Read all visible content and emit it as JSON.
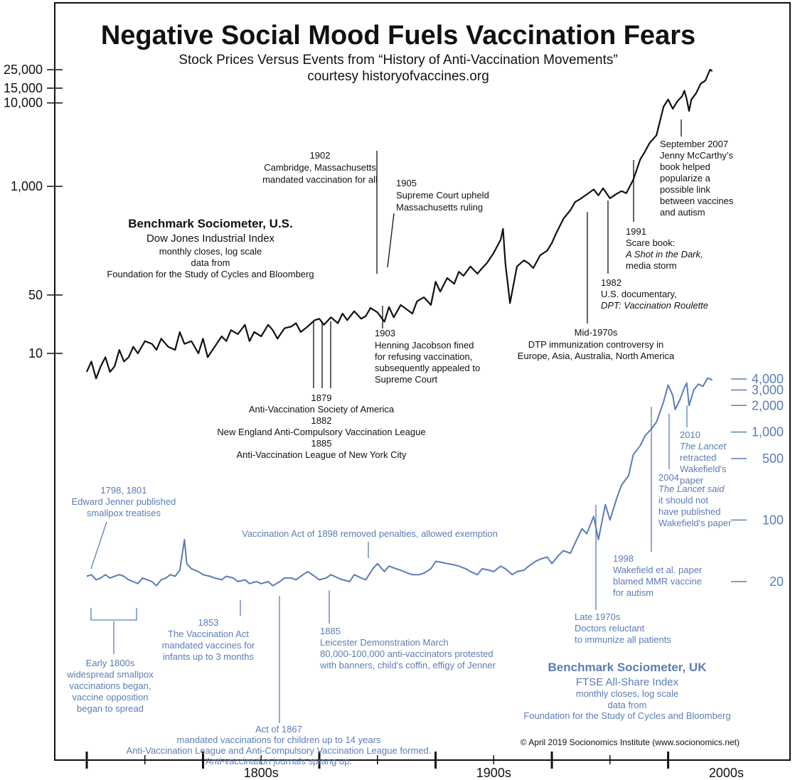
{
  "title": "Negative Social Mood Fuels Vaccination Fears",
  "subtitle": "Stock Prices Versus Events from “History of Anti-Vaccination Movements”",
  "courtesy": "courtesy historyofvaccines.org",
  "copyright": "© April 2019 Socionomics Institute (www.socionomics.net)",
  "colors": {
    "us": "#111111",
    "uk": "#5b7db3"
  },
  "chart_data": [
    {
      "type": "line",
      "name": "Benchmark Sociometer, U.S.",
      "legend": [
        "Benchmark Sociometer, U.S.",
        "Dow Jones Industrial Index",
        "monthly closes, log scale",
        "data from",
        "Foundation for the Study of Cycles and Bloomberg"
      ],
      "scale": "log",
      "axis_side": "left",
      "yticks": [
        {
          "value": 25000,
          "label": "25,000"
        },
        {
          "value": 15000,
          "label": "15,000"
        },
        {
          "value": 10000,
          "label": "10,000"
        },
        {
          "value": 1000,
          "label": "1,000"
        },
        {
          "value": 50,
          "label": "50"
        },
        {
          "value": 10,
          "label": "10"
        }
      ],
      "x": [
        1750,
        1752,
        1754,
        1756,
        1758,
        1760,
        1762,
        1764,
        1766,
        1768,
        1770,
        1772,
        1775,
        1778,
        1780,
        1782,
        1785,
        1788,
        1790,
        1792,
        1795,
        1798,
        1800,
        1802,
        1805,
        1808,
        1810,
        1812,
        1815,
        1818,
        1820,
        1822,
        1825,
        1828,
        1830,
        1832,
        1835,
        1838,
        1840,
        1842,
        1845,
        1848,
        1850,
        1852,
        1855,
        1858,
        1860,
        1862,
        1865,
        1868,
        1870,
        1872,
        1875,
        1878,
        1880,
        1882,
        1885,
        1888,
        1890,
        1892,
        1895,
        1898,
        1900,
        1902,
        1905,
        1908,
        1910,
        1912,
        1915,
        1918,
        1920,
        1922,
        1925,
        1928,
        1929,
        1930,
        1932,
        1935,
        1938,
        1940,
        1942,
        1945,
        1948,
        1950,
        1952,
        1955,
        1958,
        1960,
        1962,
        1965,
        1968,
        1970,
        1972,
        1975,
        1978,
        1980,
        1982,
        1985,
        1988,
        1990,
        1992,
        1995,
        1998,
        2000,
        2002,
        2004,
        2006,
        2007,
        2008,
        2009,
        2010,
        2012,
        2014,
        2016,
        2018,
        2019
      ],
      "values": [
        6,
        8,
        5,
        7,
        9,
        6,
        7,
        11,
        8,
        9,
        12,
        10,
        14,
        13,
        11,
        15,
        12,
        11,
        18,
        13,
        14,
        10,
        15,
        9,
        12,
        16,
        14,
        19,
        17,
        22,
        14,
        18,
        16,
        22,
        19,
        15,
        20,
        21,
        23,
        18,
        21,
        25,
        26,
        22,
        27,
        23,
        30,
        25,
        32,
        26,
        28,
        35,
        31,
        24,
        36,
        27,
        38,
        33,
        30,
        42,
        47,
        38,
        72,
        55,
        80,
        68,
        95,
        85,
        110,
        90,
        105,
        120,
        160,
        230,
        310,
        120,
        40,
        110,
        130,
        120,
        105,
        150,
        170,
        210,
        280,
        410,
        520,
        650,
        700,
        800,
        920,
        780,
        950,
        720,
        820,
        880,
        830,
        1200,
        2100,
        2600,
        3300,
        4100,
        9000,
        11000,
        8500,
        10500,
        12000,
        14000,
        11000,
        8000,
        11000,
        13000,
        17000,
        18500,
        25000,
        24000
      ]
    },
    {
      "type": "line",
      "name": "Benchmark Sociometer, UK",
      "legend": [
        "Benchmark Sociometer, UK",
        "FTSE All-Share Index",
        "monthly closes, log scale",
        "data from",
        "Foundation for the Study of Cycles and Bloomberg"
      ],
      "scale": "log",
      "axis_side": "right",
      "yticks": [
        {
          "value": 4000,
          "label": "4,000"
        },
        {
          "value": 3000,
          "label": "3,000"
        },
        {
          "value": 2000,
          "label": "2,000"
        },
        {
          "value": 1000,
          "label": "1,000"
        },
        {
          "value": 500,
          "label": "500"
        },
        {
          "value": 100,
          "label": "100"
        },
        {
          "value": 20,
          "label": "20"
        }
      ],
      "x": [
        1750,
        1752,
        1754,
        1756,
        1758,
        1760,
        1762,
        1764,
        1766,
        1768,
        1770,
        1772,
        1774,
        1776,
        1778,
        1780,
        1782,
        1784,
        1786,
        1788,
        1790,
        1792,
        1793,
        1795,
        1798,
        1800,
        1803,
        1805,
        1808,
        1810,
        1813,
        1815,
        1818,
        1820,
        1823,
        1825,
        1828,
        1830,
        1833,
        1835,
        1838,
        1840,
        1843,
        1845,
        1848,
        1850,
        1853,
        1855,
        1858,
        1860,
        1863,
        1865,
        1868,
        1870,
        1873,
        1875,
        1878,
        1880,
        1883,
        1885,
        1888,
        1890,
        1893,
        1895,
        1898,
        1900,
        1903,
        1905,
        1908,
        1910,
        1913,
        1915,
        1918,
        1920,
        1923,
        1925,
        1928,
        1930,
        1933,
        1935,
        1938,
        1940,
        1943,
        1945,
        1948,
        1950,
        1953,
        1955,
        1958,
        1960,
        1963,
        1965,
        1968,
        1970,
        1973,
        1975,
        1978,
        1980,
        1983,
        1985,
        1988,
        1990,
        1993,
        1995,
        1998,
        2000,
        2002,
        2003,
        2005,
        2007,
        2008,
        2009,
        2011,
        2013,
        2015,
        2017,
        2019
      ],
      "values": [
        23,
        24,
        21,
        22,
        24,
        22,
        23,
        24,
        23,
        21,
        20,
        19,
        22,
        21,
        20,
        18,
        21,
        22,
        24,
        23,
        27,
        60,
        32,
        28,
        26,
        24,
        23,
        22,
        21,
        23,
        22,
        20,
        21,
        19,
        20,
        19,
        20,
        18,
        20,
        22,
        22,
        21,
        24,
        26,
        23,
        21,
        22,
        24,
        22,
        21,
        20,
        24,
        22,
        21,
        28,
        32,
        26,
        30,
        28,
        27,
        25,
        24,
        24,
        25,
        28,
        34,
        33,
        32,
        31,
        30,
        28,
        26,
        24,
        28,
        27,
        26,
        30,
        28,
        24,
        26,
        27,
        30,
        34,
        36,
        38,
        32,
        40,
        45,
        42,
        55,
        80,
        70,
        110,
        60,
        150,
        100,
        180,
        250,
        320,
        550,
        700,
        900,
        1100,
        1300,
        2200,
        3400,
        2600,
        1800,
        2300,
        3200,
        3600,
        2000,
        3000,
        3500,
        3300,
        4100,
        3900
      ]
    }
  ],
  "x_axis": {
    "labels": [
      {
        "value": 1800,
        "label": "1800s"
      },
      {
        "value": 1900,
        "label": "1900s"
      },
      {
        "value": 2000,
        "label": "2000s"
      }
    ]
  },
  "annotations_us": [
    {
      "lines": [
        "1902",
        "Cambridge, Massachusetts",
        "mandated vaccination for all"
      ]
    },
    {
      "lines": [
        "1905",
        "Supreme Court upheld",
        "Massachusetts ruling"
      ]
    },
    {
      "lines": [
        "1903",
        "Henning Jacobson fined",
        "for refusing vaccination,",
        "subsequently appealed to",
        "Supreme Court"
      ]
    },
    {
      "lines": [
        "1879",
        "Anti-Vaccination Society of America",
        "1882",
        "New England Anti-Compulsory Vaccination League",
        "1885",
        "Anti-Vaccination League of New York City"
      ]
    },
    {
      "lines": [
        "Mid-1970s",
        "DTP immunization controversy in",
        "Europe, Asia, Australia, North America"
      ]
    },
    {
      "lines": [
        "1982",
        "U.S. documentary,",
        "DPT: Vaccination Roulette"
      ]
    },
    {
      "lines": [
        "1991",
        "Scare book:",
        "A Shot in the Dark,",
        "media storm"
      ]
    },
    {
      "lines": [
        "September 2007",
        "Jenny McCarthy’s",
        "book helped",
        "popularize a",
        "possible link",
        "between vaccines",
        "and autism"
      ]
    }
  ],
  "annotations_uk": [
    {
      "lines": [
        "1798, 1801",
        "Edward Jenner published",
        "smallpox treatises"
      ]
    },
    {
      "lines": [
        "Vaccination Act of 1898 removed penalties, allowed exemption"
      ]
    },
    {
      "lines": [
        "1853",
        "The Vaccination Act",
        "mandated vaccines for",
        "infants up to 3 months"
      ]
    },
    {
      "lines": [
        "1885",
        "Leicester Demonstration March",
        "80,000-100,000 anti-vaccinators protested",
        "with banners, child's coffin, effigy of Jenner"
      ]
    },
    {
      "lines": [
        "Early 1800s",
        "widespread smallpox",
        "vaccinations began,",
        "vaccine opposition",
        "began to spread"
      ]
    },
    {
      "lines": [
        "Act of 1867",
        "mandated vaccinations for children up to 14 years",
        "Anti-Vaccination League and Anti-Compulsory Vaccination League formed.",
        "Anti-vaccination journals sprang up."
      ]
    },
    {
      "lines": [
        "Late 1970s",
        "Doctors reluctant",
        "to immunize all patients"
      ]
    },
    {
      "lines": [
        "1998",
        "Wakefield et al. paper",
        "blamed MMR vaccine",
        "for autism"
      ]
    },
    {
      "lines": [
        "2004",
        "The Lancet said",
        "it should not",
        "have published",
        "Wakefield's paper"
      ]
    },
    {
      "lines": [
        "2010",
        "The Lancet",
        "retracted",
        "Wakefield's",
        "paper"
      ]
    }
  ]
}
